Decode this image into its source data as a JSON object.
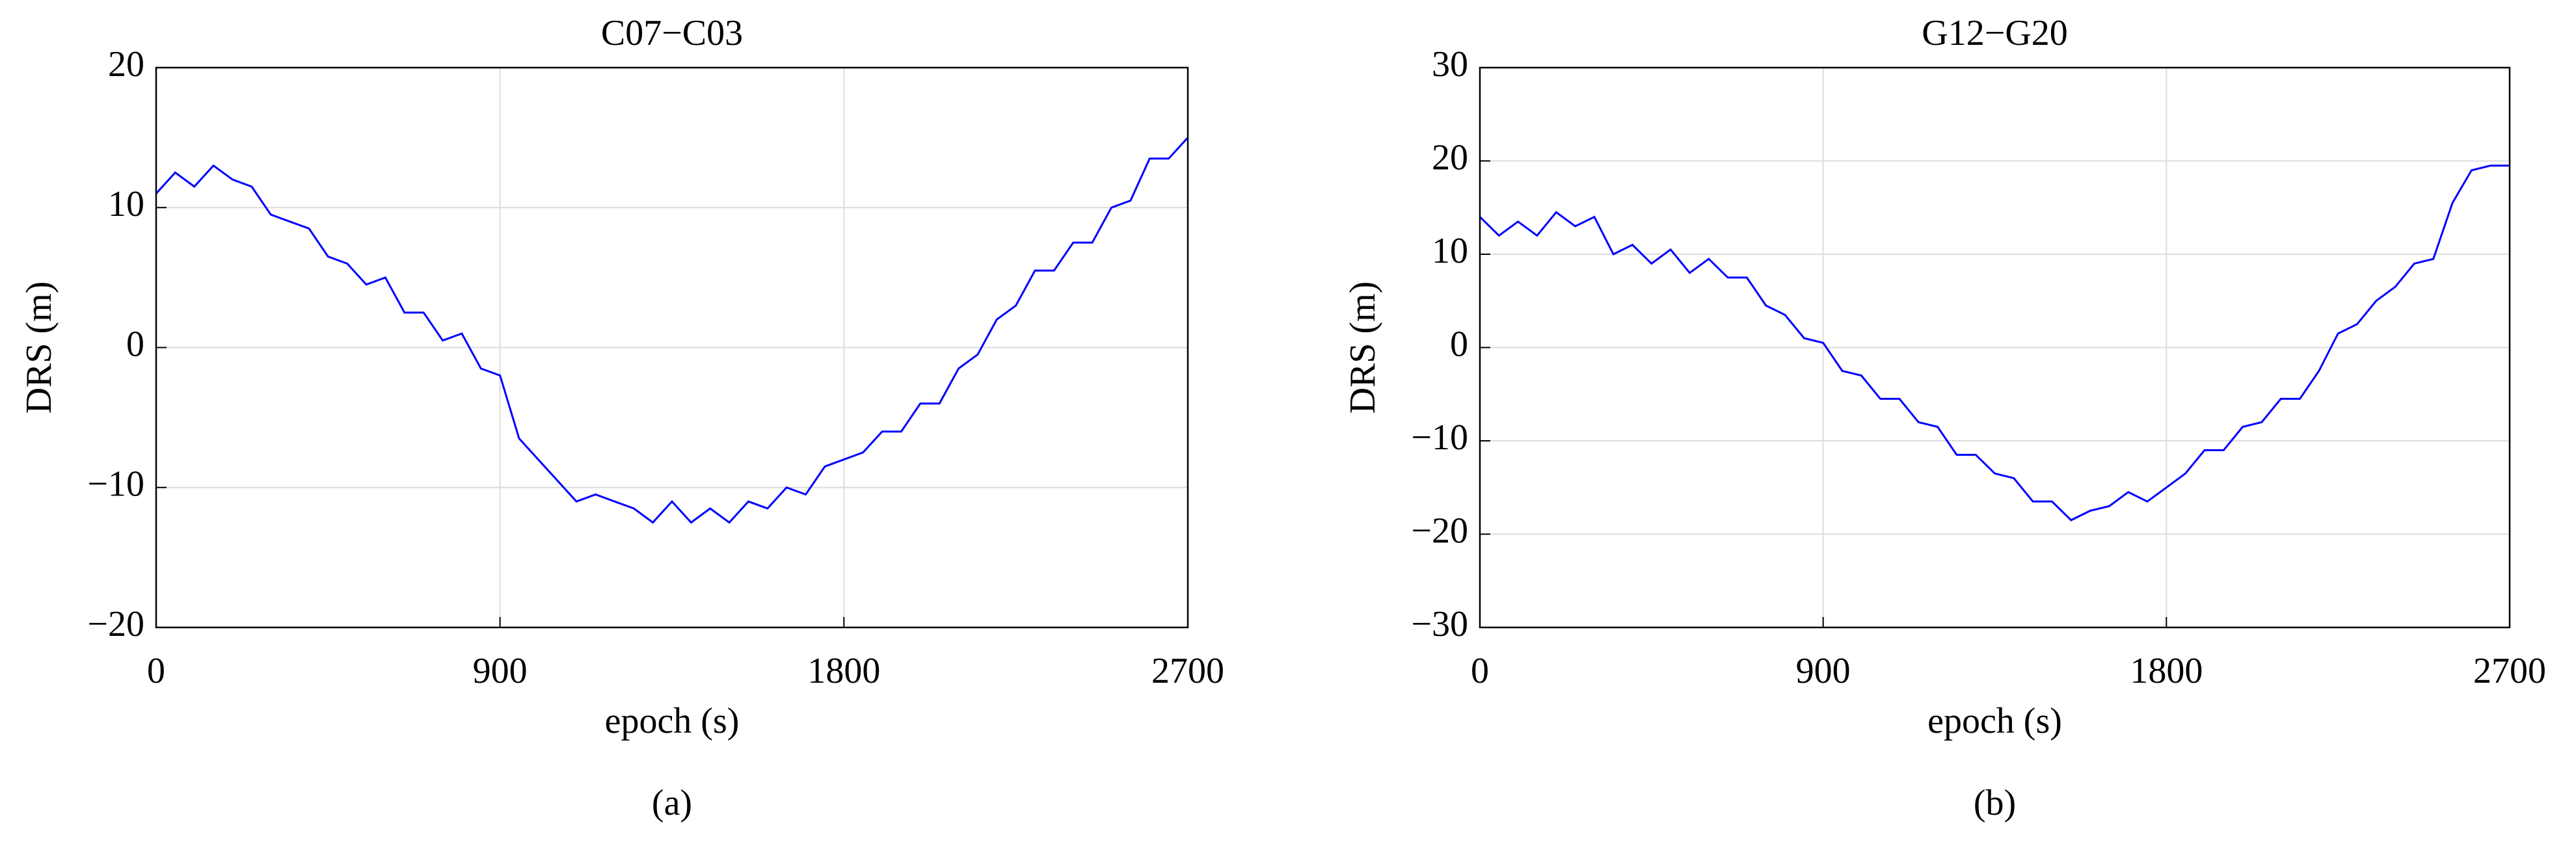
{
  "chart_data": [
    {
      "type": "line",
      "title": "C07−C03",
      "xlabel": "epoch (s)",
      "ylabel": "DRS (m)",
      "caption": "(a)",
      "xlim": [
        0,
        2700
      ],
      "xticks": [
        0,
        900,
        1800,
        2700
      ],
      "ylim": [
        -20,
        20
      ],
      "yticks": [
        {
          "value": -20,
          "label": "−20"
        },
        {
          "value": -10,
          "label": "−10"
        },
        0,
        10,
        20
      ],
      "grid": true,
      "x": [
        0,
        50,
        100,
        150,
        200,
        250,
        300,
        350,
        400,
        450,
        500,
        550,
        600,
        650,
        700,
        750,
        800,
        850,
        900,
        950,
        1000,
        1050,
        1100,
        1150,
        1200,
        1250,
        1300,
        1350,
        1400,
        1450,
        1500,
        1550,
        1600,
        1650,
        1700,
        1750,
        1800,
        1850,
        1900,
        1950,
        2000,
        2050,
        2100,
        2150,
        2200,
        2250,
        2300,
        2350,
        2400,
        2450,
        2500,
        2550,
        2600,
        2650,
        2700
      ],
      "series": [
        {
          "color": "#0000ff",
          "values": [
            11,
            12.5,
            11.5,
            13,
            12,
            11.5,
            9.5,
            9,
            8.5,
            6.5,
            6,
            4.5,
            5,
            2.5,
            2.5,
            0.5,
            1,
            -1.5,
            -2,
            -6.5,
            -8,
            -9.5,
            -11,
            -10.5,
            -11,
            -11.5,
            -12.5,
            -11,
            -12.5,
            -11.5,
            -12.5,
            -11,
            -11.5,
            -10,
            -10.5,
            -8.5,
            -8,
            -7.5,
            -6,
            -6,
            -4,
            -4,
            -1.5,
            -0.5,
            2,
            3,
            5.5,
            5.5,
            7.5,
            7.5,
            10,
            10.5,
            13.5,
            13.5,
            15
          ]
        }
      ]
    },
    {
      "type": "line",
      "title": "G12−G20",
      "xlabel": "epoch (s)",
      "ylabel": "DRS (m)",
      "caption": "(b)",
      "xlim": [
        0,
        2700
      ],
      "xticks": [
        0,
        900,
        1800,
        2700
      ],
      "ylim": [
        -30,
        30
      ],
      "yticks": [
        {
          "value": -30,
          "label": "−30"
        },
        {
          "value": -20,
          "label": "−20"
        },
        {
          "value": -10,
          "label": "−10"
        },
        0,
        10,
        20,
        30
      ],
      "grid": true,
      "x": [
        0,
        50,
        100,
        150,
        200,
        250,
        300,
        350,
        400,
        450,
        500,
        550,
        600,
        650,
        700,
        750,
        800,
        850,
        900,
        950,
        1000,
        1050,
        1100,
        1150,
        1200,
        1250,
        1300,
        1350,
        1400,
        1450,
        1500,
        1550,
        1600,
        1650,
        1700,
        1750,
        1800,
        1850,
        1900,
        1950,
        2000,
        2050,
        2100,
        2150,
        2200,
        2250,
        2300,
        2350,
        2400,
        2450,
        2500,
        2550,
        2600,
        2650,
        2700
      ],
      "series": [
        {
          "color": "#0000ff",
          "values": [
            14,
            12,
            13.5,
            12,
            14.5,
            13,
            14,
            10,
            11,
            9,
            10.5,
            8,
            9.5,
            7.5,
            7.5,
            4.5,
            3.5,
            1,
            0.5,
            -2.5,
            -3,
            -5.5,
            -5.5,
            -8,
            -8.5,
            -11.5,
            -11.5,
            -13.5,
            -14,
            -16.5,
            -16.5,
            -18.5,
            -17.5,
            -17,
            -15.5,
            -16.5,
            -15,
            -13.5,
            -11,
            -11,
            -8.5,
            -8,
            -5.5,
            -5.5,
            -2.5,
            1.5,
            2.5,
            5,
            6.5,
            9,
            9.5,
            15.5,
            19,
            19.5,
            19.5
          ]
        }
      ]
    }
  ]
}
